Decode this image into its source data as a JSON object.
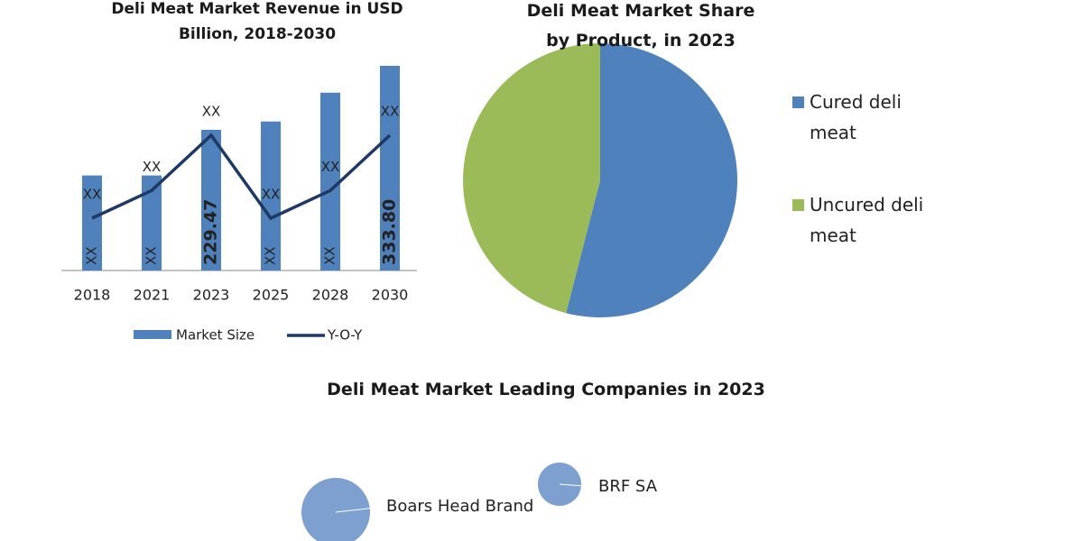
{
  "chart_data": [
    {
      "type": "combo",
      "title": "Deli Meat Market Revenue in USD Billion, 2018-2030",
      "categories": [
        "2018",
        "2021",
        "2023",
        "2025",
        "2028",
        "2030"
      ],
      "series": [
        {
          "name": "Market Size",
          "type": "bar",
          "color": "#4f81bd",
          "values": [
            155,
            155,
            229.47,
            243,
            290,
            333.8
          ],
          "value_labels": [
            "XX",
            "XX",
            "229.47",
            "XX",
            "XX",
            "333.80"
          ]
        },
        {
          "name": "Y-O-Y",
          "type": "line",
          "color": "#1f3864",
          "values": [
            3,
            4,
            6,
            3,
            4,
            6
          ],
          "value_labels": [
            "XX",
            "XX",
            "XX",
            "XX",
            "XX",
            "XX"
          ]
        }
      ]
    },
    {
      "type": "pie",
      "title": "Deli Meat Market Share by Product, in 2023",
      "categories": [
        "Cured deli meat",
        "Uncured deli meat"
      ],
      "values": [
        54,
        46
      ],
      "colors": [
        "#4f81bd",
        "#9bbb59"
      ]
    },
    {
      "type": "bubble",
      "title": "Deli Meat Market Leading Companies in 2023",
      "labels": [
        "Boars Head Brand",
        "BRF SA"
      ],
      "sizes": [
        2.5,
        1
      ],
      "color": "#7ea0d0"
    }
  ]
}
